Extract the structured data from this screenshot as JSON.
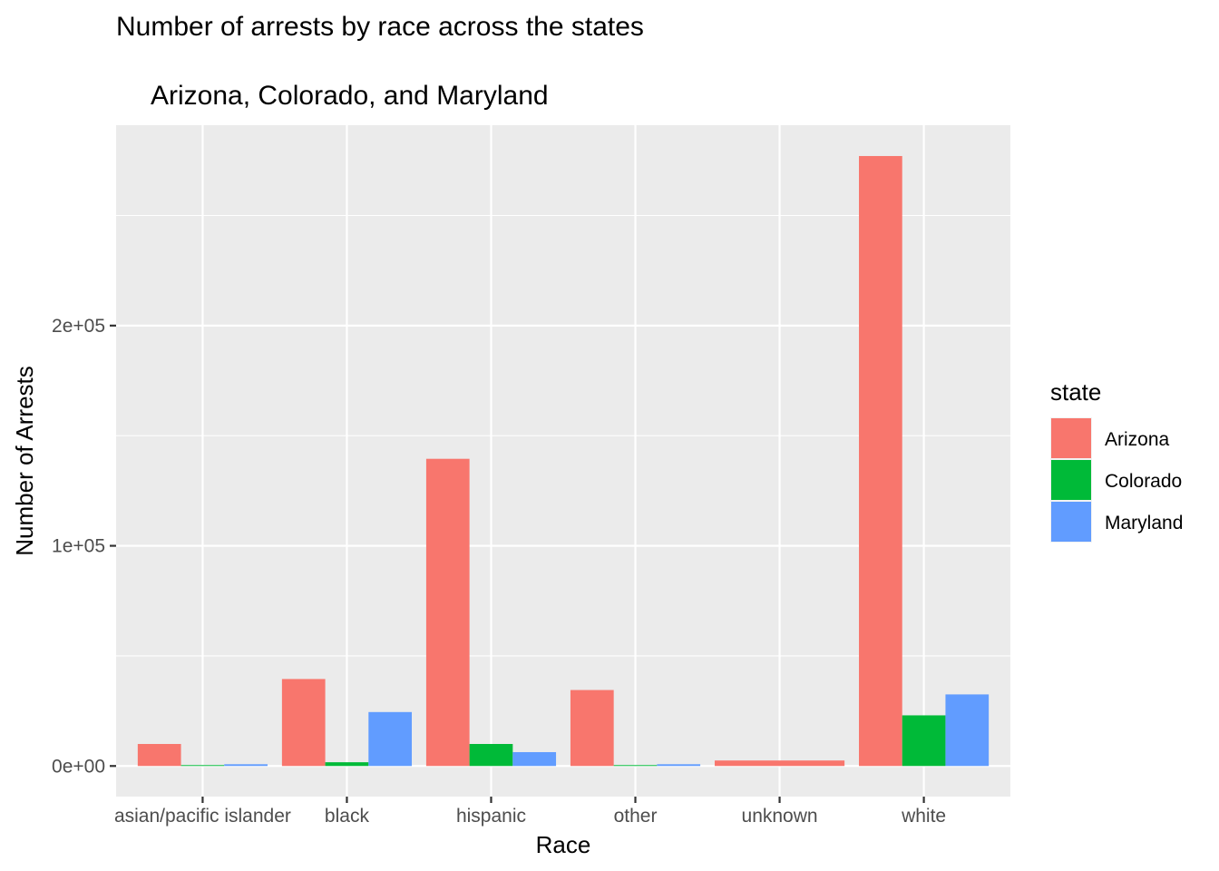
{
  "chart_data": {
    "type": "bar",
    "title": "Number of arrests by race across the states",
    "subtitle": "Arizona, Colorado, and Maryland",
    "xlabel": "Race",
    "ylabel": "Number of Arrests",
    "categories": [
      "asian/pacific islander",
      "black",
      "hispanic",
      "other",
      "unknown",
      "white"
    ],
    "series": [
      {
        "name": "Arizona",
        "color": "#F8766D",
        "values": [
          10000,
          39500,
          139500,
          34500,
          2500,
          277000
        ]
      },
      {
        "name": "Colorado",
        "color": "#00BA38",
        "values": [
          400,
          1700,
          10000,
          400,
          0,
          23000
        ]
      },
      {
        "name": "Maryland",
        "color": "#619CFF",
        "values": [
          800,
          24500,
          6300,
          800,
          0,
          32500
        ]
      }
    ],
    "y_ticks": [
      {
        "value": 0,
        "label": "0e+00"
      },
      {
        "value": 100000,
        "label": "1e+05"
      },
      {
        "value": 200000,
        "label": "2e+05"
      }
    ],
    "ylim": [
      -13900,
      291000
    ],
    "grid": true,
    "legend": {
      "title": "state",
      "position": "right",
      "entries": [
        "Arizona",
        "Colorado",
        "Maryland"
      ]
    },
    "panel_background": "#EBEBEB"
  }
}
